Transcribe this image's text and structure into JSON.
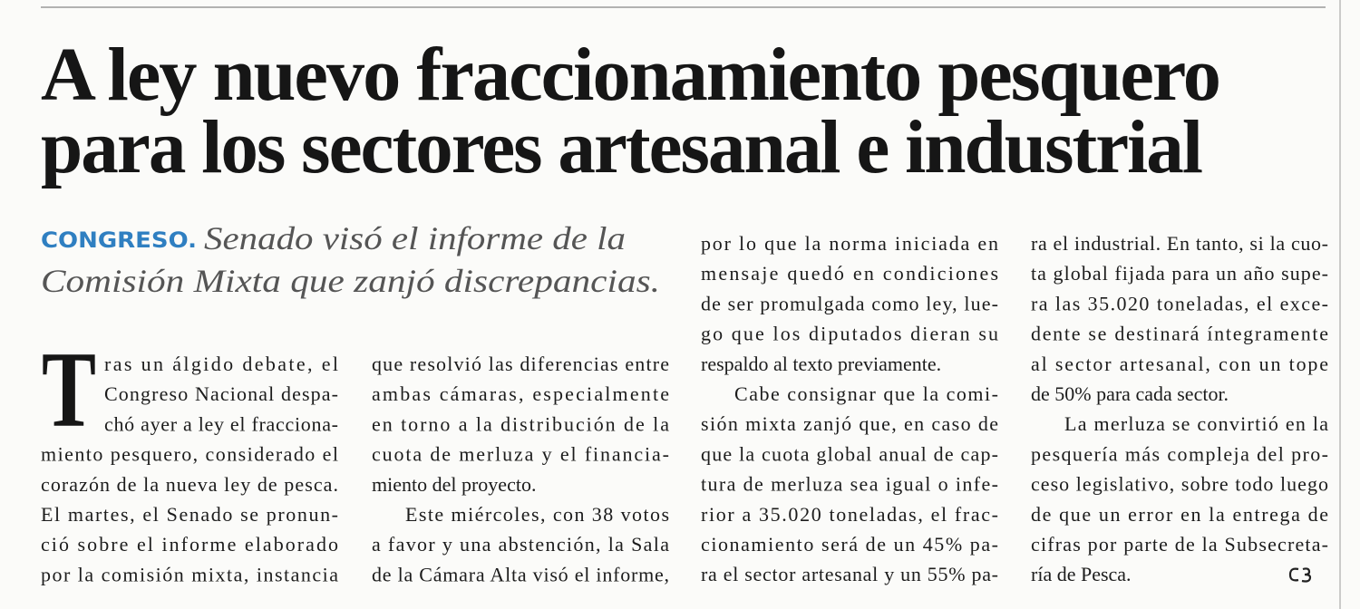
{
  "headline": {
    "lines": [
      "A ley nuevo fraccionamiento pesquero",
      "para los sectores artesanal e industrial"
    ]
  },
  "deck": {
    "kicker": "CONGRESO.",
    "lines": [
      "Senado visó el informe de la",
      "Comisión Mixta que zanjó discrepancias."
    ]
  },
  "body": {
    "drop_cap": "T",
    "columns": [
      {
        "paragraphs": [
          {
            "lines": [
              "ras un álgido debate, el",
              "Congreso Nacional despa-",
              "chó ayer a ley el fracciona-",
              "miento pesquero, considerado el",
              "corazón de la nueva ley de pesca.",
              "El martes, el Senado se pronun-",
              "ció sobre el informe elaborado",
              "por la comisión mixta, instancia"
            ]
          }
        ]
      },
      {
        "paragraphs": [
          {
            "lines": [
              "que resolvió las diferencias entre",
              "ambas cámaras, especialmente",
              "en torno a la distribución de la",
              "cuota de merluza y el financia-",
              "miento del proyecto."
            ]
          },
          {
            "lines": [
              "Este miércoles, con 38 votos",
              "a favor y una abstención, la Sala",
              "de la Cámara Alta visó el informe,"
            ]
          }
        ]
      },
      {
        "paragraphs": [
          {
            "lines": [
              "por lo que la norma iniciada en",
              "mensaje quedó en condiciones",
              "de ser promulgada como ley, lue-",
              "go que los diputados dieran su",
              "respaldo al texto previamente."
            ]
          },
          {
            "lines": [
              "Cabe consignar que la comi-",
              "sión mixta zanjó que, en caso de",
              "que la cuota global anual de cap-",
              "tura de merluza sea igual o infe-",
              "rior a 35.020 toneladas, el frac-",
              "cionamiento será de un 45% pa-",
              "ra el sector artesanal y un 55% pa-"
            ]
          }
        ]
      },
      {
        "paragraphs": [
          {
            "lines": [
              "ra el industrial. En tanto, si la cuo-",
              "ta global fijada para un año supe-",
              "ra las 35.020 toneladas, el exce-",
              "dente se destinará íntegramente",
              "al sector artesanal, con un tope",
              "de 50% para cada sector."
            ]
          },
          {
            "lines": [
              "La merluza se convirtió en la",
              "pesquería más compleja del pro-",
              "ceso legislativo, sobre todo luego",
              "de que un error en la entrega de",
              "cifras por parte de la Subsecreta-",
              "ría de Pesca."
            ]
          }
        ]
      }
    ]
  }
}
